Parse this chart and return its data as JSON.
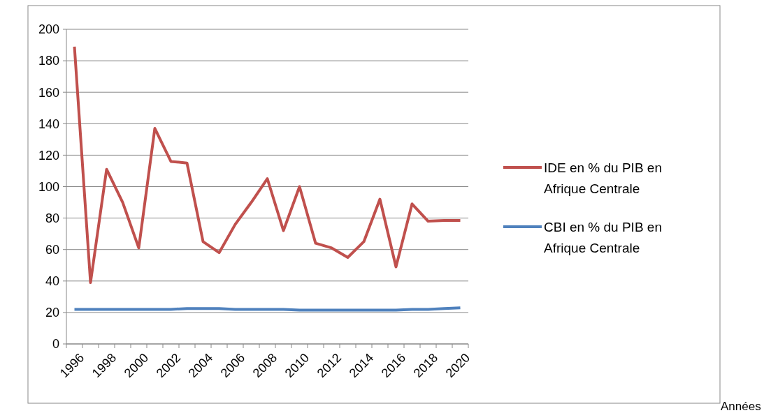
{
  "chart_data": {
    "type": "line",
    "annotations": [
      "Années"
    ],
    "categories": [
      "1996",
      null,
      "1998",
      null,
      "2000",
      null,
      "2002",
      null,
      "2004",
      null,
      "2006",
      null,
      "2008",
      null,
      "2010",
      null,
      "2012",
      null,
      "2014",
      null,
      "2016",
      null,
      "2018",
      null,
      "2020"
    ],
    "series": [
      {
        "name": "IDE en % du PIB en Afrique Centrale",
        "color": "#c0504d",
        "values": [
          189,
          39,
          111,
          90,
          61,
          137,
          116,
          115,
          65,
          58,
          76,
          90,
          105,
          72,
          100,
          64,
          61,
          55,
          65,
          92,
          49,
          89,
          78,
          78.5,
          78.5
        ]
      },
      {
        "name": "CBI en % du PIB en Afrique Centrale",
        "color": "#4f81bd",
        "values": [
          22,
          22,
          22,
          22,
          22,
          22,
          22,
          22.5,
          22.5,
          22.5,
          22,
          22,
          22,
          22,
          21.5,
          21.5,
          21.5,
          21.5,
          21.5,
          21.5,
          21.5,
          22,
          22,
          22.5,
          23
        ]
      }
    ],
    "ylim": [
      0,
      200
    ],
    "yticks": [
      0,
      20,
      40,
      60,
      80,
      100,
      120,
      140,
      160,
      180,
      200
    ],
    "grid": "y",
    "legend": "right",
    "marker": "none",
    "line_style": "solid"
  }
}
